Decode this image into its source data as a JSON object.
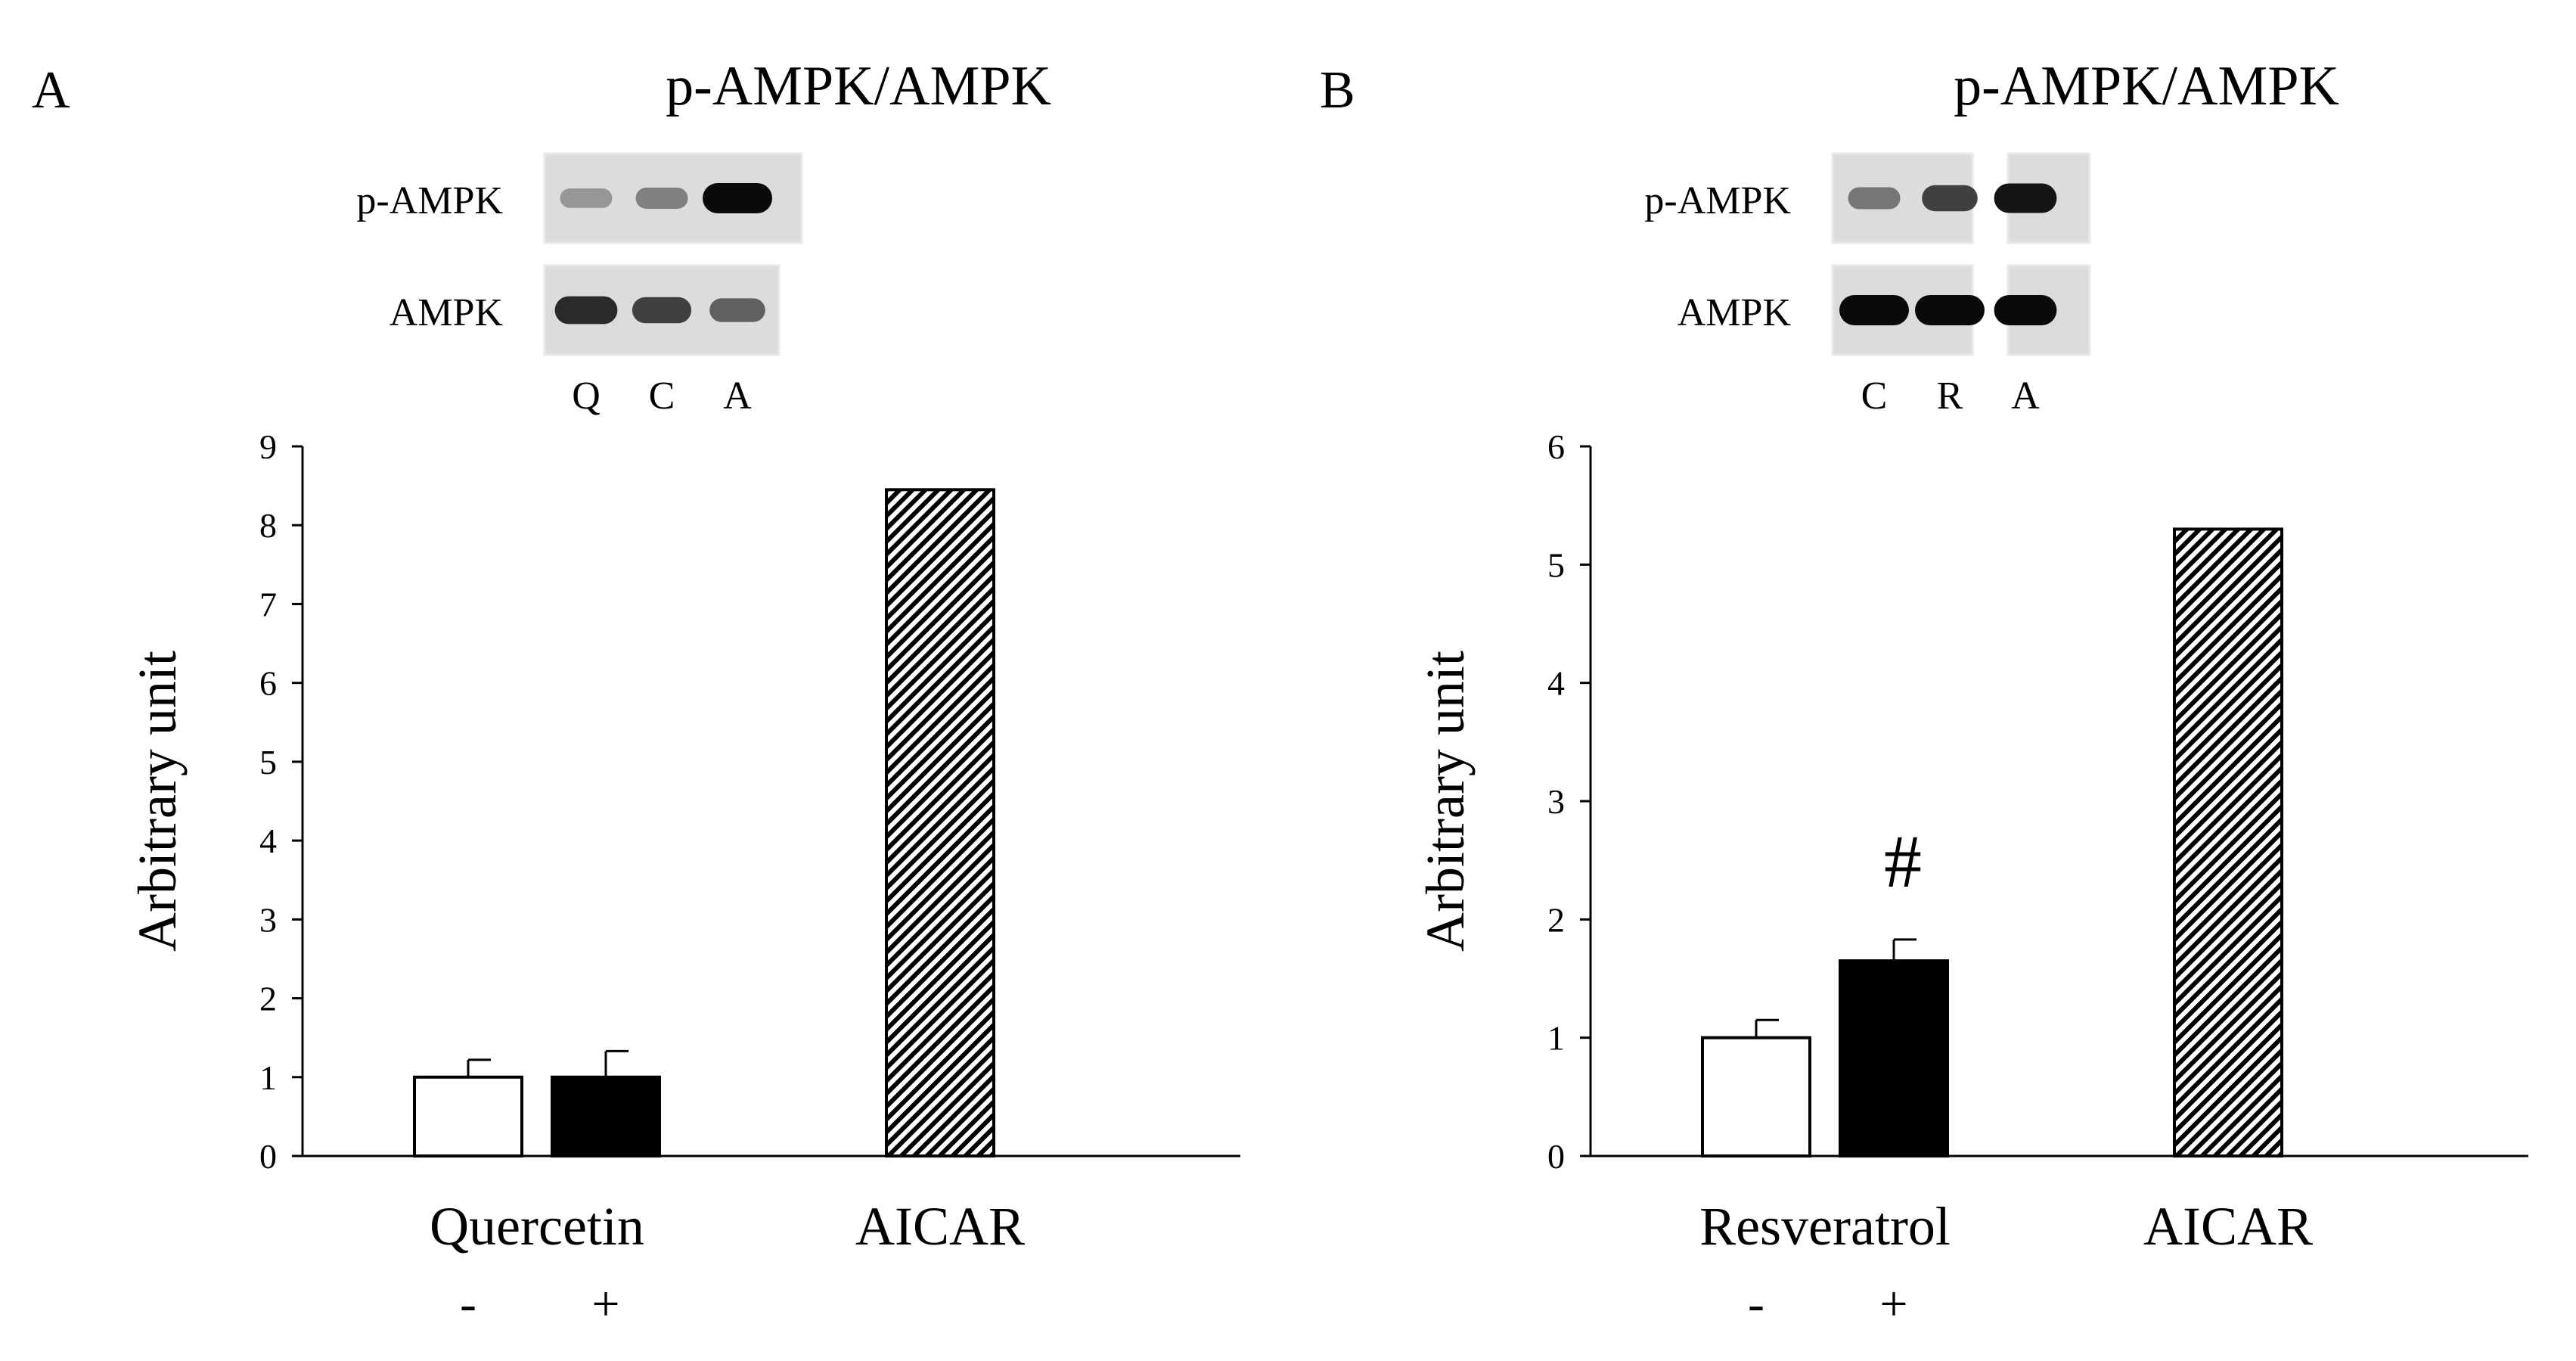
{
  "chart_data": [
    {
      "type": "bar",
      "panel_label": "A",
      "title": "p-AMPK/AMPK",
      "blot": {
        "rows": [
          "p-AMPK",
          "AMPK"
        ],
        "lanes": [
          "Q",
          "C",
          "A"
        ],
        "band_darkness": [
          [
            0.35,
            0.45,
            1.0
          ],
          [
            0.85,
            0.75,
            0.6
          ]
        ],
        "band_width": [
          [
            0.75,
            0.75,
            1.0
          ],
          [
            0.9,
            0.85,
            0.8
          ]
        ],
        "gaps": []
      },
      "ylabel": "Arbitrary unit",
      "ylim": [
        0,
        9
      ],
      "yticks": [
        "0",
        "1",
        "2",
        "3",
        "4",
        "5",
        "6",
        "7",
        "8",
        "9"
      ],
      "group_label": "Quercetin",
      "treatment_signs": [
        "-",
        "+"
      ],
      "bars": [
        {
          "value": 1.0,
          "error": 0.22,
          "fill": "white"
        },
        {
          "value": 1.0,
          "error": 0.33,
          "fill": "black"
        },
        {
          "value": 8.45,
          "error": 0,
          "fill": "hatch",
          "label": "AICAR"
        }
      ],
      "annotations": []
    },
    {
      "type": "bar",
      "panel_label": "B",
      "title": "p-AMPK/AMPK",
      "blot": {
        "rows": [
          "p-AMPK",
          "AMPK"
        ],
        "lanes": [
          "C",
          "R",
          "A"
        ],
        "band_darkness": [
          [
            0.5,
            0.75,
            0.95
          ],
          [
            1.0,
            1.0,
            1.0
          ]
        ],
        "band_width": [
          [
            0.75,
            0.8,
            0.9
          ],
          [
            1.0,
            1.0,
            0.9
          ]
        ],
        "gaps": [
          2
        ]
      },
      "ylabel": "Arbitrary unit",
      "ylim": [
        0,
        6
      ],
      "yticks": [
        "0",
        "1",
        "2",
        "3",
        "4",
        "5",
        "6"
      ],
      "group_label": "Resveratrol",
      "treatment_signs": [
        "-",
        "+"
      ],
      "bars": [
        {
          "value": 1.0,
          "error": 0.15,
          "fill": "white"
        },
        {
          "value": 1.65,
          "error": 0.18,
          "fill": "black"
        },
        {
          "value": 5.3,
          "error": 0,
          "fill": "hatch",
          "label": "AICAR"
        }
      ],
      "annotations": [
        {
          "bar": 1,
          "text": "#"
        }
      ]
    }
  ]
}
